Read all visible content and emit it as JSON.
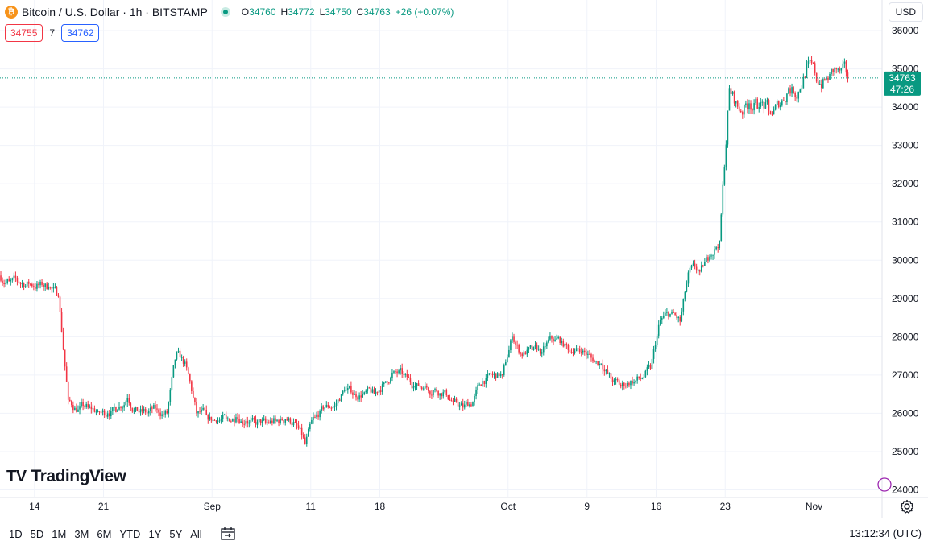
{
  "header": {
    "title": "Bitcoin / U.S. Dollar · 1h · BITSTAMP",
    "coin_icon": "bitcoin-icon",
    "ohlc": [
      {
        "k": "O",
        "v": "34760"
      },
      {
        "k": "H",
        "v": "34772"
      },
      {
        "k": "L",
        "v": "34750"
      },
      {
        "k": "C",
        "v": "34763"
      }
    ],
    "change": "+26 (+0.07%)"
  },
  "trade": {
    "sell": "34755",
    "spread": "7",
    "buy": "34762"
  },
  "currency": "USD",
  "last_price": {
    "value": "34763",
    "countdown": "47:26"
  },
  "logo": "TradingView",
  "ranges": [
    "1D",
    "5D",
    "1M",
    "3M",
    "6M",
    "YTD",
    "1Y",
    "5Y",
    "All"
  ],
  "clock": "13:12:34 (UTC)",
  "colors": {
    "up": "#089981",
    "down": "#f23645",
    "grid": "#f0f3fa",
    "accent": "#2962ff"
  },
  "chart_data": {
    "type": "line",
    "style": "candlestick",
    "interval": "1h",
    "x_tick_labels": [
      "14",
      "21",
      "Sep",
      "11",
      "18",
      "Oct",
      "9",
      "16",
      "23",
      "Nov"
    ],
    "y_ticks": [
      24000,
      25000,
      26000,
      27000,
      28000,
      29000,
      30000,
      31000,
      32000,
      33000,
      34000,
      35000,
      36000
    ],
    "ylim": [
      23800,
      36800
    ],
    "grid": true,
    "x": [
      "Aug 11",
      "Aug 12",
      "Aug 13",
      "Aug 14",
      "Aug 15",
      "Aug 16",
      "Aug 17",
      "Aug 18",
      "Aug 19",
      "Aug 20",
      "Aug 21",
      "Aug 22",
      "Aug 23",
      "Aug 24",
      "Aug 25",
      "Aug 26",
      "Aug 27",
      "Aug 28",
      "Aug 29",
      "Aug 30",
      "Aug 31",
      "Sep 1",
      "Sep 2",
      "Sep 3",
      "Sep 4",
      "Sep 5",
      "Sep 6",
      "Sep 7",
      "Sep 8",
      "Sep 9",
      "Sep 10",
      "Sep 11",
      "Sep 12",
      "Sep 13",
      "Sep 14",
      "Sep 15",
      "Sep 16",
      "Sep 17",
      "Sep 18",
      "Sep 19",
      "Sep 20",
      "Sep 21",
      "Sep 22",
      "Sep 23",
      "Sep 24",
      "Sep 25",
      "Sep 26",
      "Sep 27",
      "Sep 28",
      "Sep 29",
      "Sep 30",
      "Oct 1",
      "Oct 2",
      "Oct 3",
      "Oct 4",
      "Oct 5",
      "Oct 6",
      "Oct 7",
      "Oct 8",
      "Oct 9",
      "Oct 10",
      "Oct 11",
      "Oct 12",
      "Oct 13",
      "Oct 14",
      "Oct 15",
      "Oct 16",
      "Oct 17",
      "Oct 18",
      "Oct 19",
      "Oct 20",
      "Oct 21",
      "Oct 22",
      "Oct 23",
      "Oct 24",
      "Oct 25",
      "Oct 26",
      "Oct 27",
      "Oct 28",
      "Oct 29",
      "Oct 30",
      "Oct 31",
      "Nov 1",
      "Nov 2",
      "Nov 3",
      "Nov 4"
    ],
    "values": [
      29450,
      29400,
      29380,
      29350,
      29300,
      29050,
      26350,
      26100,
      26150,
      26050,
      26000,
      26100,
      26400,
      26050,
      26000,
      26100,
      26000,
      27600,
      27200,
      26000,
      25950,
      25800,
      25850,
      25900,
      25800,
      25700,
      25750,
      25800,
      25850,
      25750,
      25200,
      25900,
      26150,
      26200,
      26600,
      26500,
      26550,
      26500,
      26800,
      27100,
      27000,
      26700,
      26650,
      26600,
      26550,
      26300,
      26150,
      26300,
      26850,
      27000,
      27000,
      28000,
      27500,
      27650,
      27600,
      27950,
      27900,
      27600,
      27600,
      27450,
      27300,
      26900,
      26700,
      26850,
      26900,
      27150,
      28450,
      28600,
      28400,
      29800,
      29700,
      30100,
      30500,
      34500,
      33900,
      34100,
      34000,
      33900,
      34000,
      34500,
      34400,
      35200,
      34600,
      34700,
      35000,
      34763
    ]
  }
}
